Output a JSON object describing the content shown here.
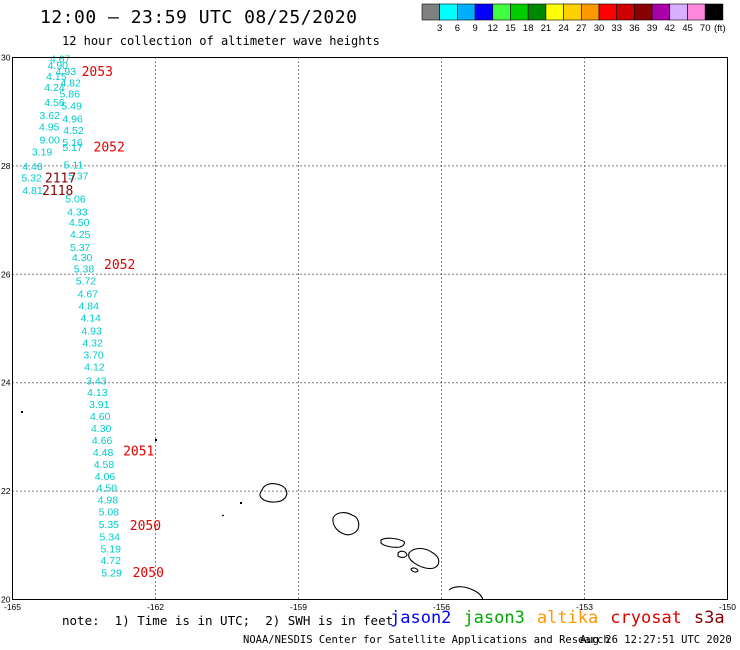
{
  "header": {
    "title": "12:00 – 23:59 UTC 08/25/2020",
    "subtitle": "12 hour collection of altimeter wave heights"
  },
  "color_scale": {
    "colors": [
      "#808080",
      "#00ffff",
      "#00b0ff",
      "#0000ff",
      "#40ff40",
      "#00cc00",
      "#008800",
      "#ffff00",
      "#ffd000",
      "#ff9900",
      "#ff0000",
      "#cc0000",
      "#880000",
      "#aa00aa",
      "#d8b0ff",
      "#ff88dd",
      "#000000"
    ],
    "labels": [
      "3",
      "6",
      "9",
      "12",
      "15",
      "18",
      "21",
      "24",
      "27",
      "30",
      "33",
      "36",
      "39",
      "42",
      "45",
      "70"
    ],
    "unit": "(ft)"
  },
  "map": {
    "lat_ticks": [
      "30",
      "28",
      "26",
      "24",
      "22",
      "20"
    ],
    "lon_ticks": [
      "-165",
      "-162",
      "-159",
      "-156",
      "-153",
      "-150"
    ],
    "wave_heights": [
      {
        "lat": 29.96,
        "lon": -164.0,
        "value": "4.67"
      },
      {
        "lat": 29.84,
        "lon": -164.05,
        "value": "4.90"
      },
      {
        "lat": 29.73,
        "lon": -163.88,
        "value": "4.93"
      },
      {
        "lat": 29.64,
        "lon": -164.08,
        "value": "4.15"
      },
      {
        "lat": 29.52,
        "lon": -163.78,
        "value": "4.82"
      },
      {
        "lat": 29.43,
        "lon": -164.12,
        "value": "4.24"
      },
      {
        "lat": 29.31,
        "lon": -163.8,
        "value": "5.86"
      },
      {
        "lat": 29.16,
        "lon": -164.12,
        "value": "4.56"
      },
      {
        "lat": 29.09,
        "lon": -163.76,
        "value": "5.49"
      },
      {
        "lat": 28.92,
        "lon": -164.22,
        "value": "3.62"
      },
      {
        "lat": 28.85,
        "lon": -163.74,
        "value": "4.96"
      },
      {
        "lat": 28.7,
        "lon": -164.23,
        "value": "4.95"
      },
      {
        "lat": 28.64,
        "lon": -163.72,
        "value": "4.52"
      },
      {
        "lat": 28.46,
        "lon": -164.22,
        "value": "9.00"
      },
      {
        "lat": 28.42,
        "lon": -163.74,
        "value": "5.16"
      },
      {
        "lat": 28.24,
        "lon": -164.38,
        "value": "3.19"
      },
      {
        "lat": 28.33,
        "lon": -163.74,
        "value": "5.17"
      },
      {
        "lat": 27.98,
        "lon": -164.58,
        "value": "4.48"
      },
      {
        "lat": 28.0,
        "lon": -163.72,
        "value": "5.11"
      },
      {
        "lat": 27.76,
        "lon": -164.6,
        "value": "5.32"
      },
      {
        "lat": 27.8,
        "lon": -163.62,
        "value": "5.37"
      },
      {
        "lat": 27.53,
        "lon": -164.58,
        "value": "4.81"
      },
      {
        "lat": 27.38,
        "lon": -163.68,
        "value": "5.06"
      },
      {
        "lat": 27.14,
        "lon": -163.64,
        "value": "4.33"
      },
      {
        "lat": 26.94,
        "lon": -163.6,
        "value": "4.50"
      },
      {
        "lat": 26.72,
        "lon": -163.58,
        "value": "4.25"
      },
      {
        "lat": 26.48,
        "lon": -163.58,
        "value": "5.37"
      },
      {
        "lat": 26.3,
        "lon": -163.54,
        "value": "4.30"
      },
      {
        "lat": 26.08,
        "lon": -163.5,
        "value": "5.38"
      },
      {
        "lat": 25.86,
        "lon": -163.46,
        "value": "5.72"
      },
      {
        "lat": 25.62,
        "lon": -163.42,
        "value": "4.67"
      },
      {
        "lat": 25.4,
        "lon": -163.4,
        "value": "4.84"
      },
      {
        "lat": 25.18,
        "lon": -163.36,
        "value": "4.14"
      },
      {
        "lat": 24.94,
        "lon": -163.34,
        "value": "4.93"
      },
      {
        "lat": 24.72,
        "lon": -163.32,
        "value": "4.32"
      },
      {
        "lat": 24.5,
        "lon": -163.3,
        "value": "3.70"
      },
      {
        "lat": 24.28,
        "lon": -163.28,
        "value": "4.12"
      },
      {
        "lat": 24.02,
        "lon": -163.24,
        "value": "3.43"
      },
      {
        "lat": 23.81,
        "lon": -163.22,
        "value": "4.13"
      },
      {
        "lat": 23.58,
        "lon": -163.18,
        "value": "3.91"
      },
      {
        "lat": 23.36,
        "lon": -163.16,
        "value": "4.60"
      },
      {
        "lat": 23.14,
        "lon": -163.14,
        "value": "4.30"
      },
      {
        "lat": 22.92,
        "lon": -163.12,
        "value": "4.66"
      },
      {
        "lat": 22.7,
        "lon": -163.1,
        "value": "4.48"
      },
      {
        "lat": 22.48,
        "lon": -163.08,
        "value": "4.58"
      },
      {
        "lat": 22.26,
        "lon": -163.06,
        "value": "4.06"
      },
      {
        "lat": 22.04,
        "lon": -163.02,
        "value": "4.50"
      },
      {
        "lat": 21.82,
        "lon": -163.0,
        "value": "4.98"
      },
      {
        "lat": 21.6,
        "lon": -162.98,
        "value": "5.08"
      },
      {
        "lat": 21.37,
        "lon": -162.98,
        "value": "5.35"
      },
      {
        "lat": 21.14,
        "lon": -162.96,
        "value": "5.34"
      },
      {
        "lat": 20.92,
        "lon": -162.94,
        "value": "5.19"
      },
      {
        "lat": 20.71,
        "lon": -162.94,
        "value": "4.72"
      },
      {
        "lat": 20.48,
        "lon": -162.92,
        "value": "5.29"
      }
    ],
    "times": [
      {
        "lat": 29.72,
        "lon": -163.55,
        "value": "2053",
        "color": "#e00000"
      },
      {
        "lat": 28.33,
        "lon": -163.3,
        "value": "2052",
        "color": "#e00000"
      },
      {
        "lat": 27.76,
        "lon": -164.32,
        "value": "2117",
        "color": "#880000"
      },
      {
        "lat": 27.53,
        "lon": -164.38,
        "value": "2118",
        "color": "#880000"
      },
      {
        "lat": 26.16,
        "lon": -163.08,
        "value": "2052",
        "color": "#e00000"
      },
      {
        "lat": 22.72,
        "lon": -162.68,
        "value": "2051",
        "color": "#e00000"
      },
      {
        "lat": 21.35,
        "lon": -162.54,
        "value": "2050",
        "color": "#e00000"
      },
      {
        "lat": 20.48,
        "lon": -162.48,
        "value": "2050",
        "color": "#e00000"
      }
    ]
  },
  "footer": {
    "note": "note:  1) Time is in UTC;  2) SWH is in feet",
    "satellites": [
      {
        "name": "jason2",
        "color": "#0000ff"
      },
      {
        "name": "jason3",
        "color": "#00aa00"
      },
      {
        "name": "altika",
        "color": "#ff9900"
      },
      {
        "name": "cryosat",
        "color": "#e00000"
      },
      {
        "name": "s3a",
        "color": "#880000"
      }
    ],
    "credit": "NOAA/NESDIS Center for Satellite Applications and Research",
    "generated": "Aug 26 12:27:51 UTC 2020"
  }
}
